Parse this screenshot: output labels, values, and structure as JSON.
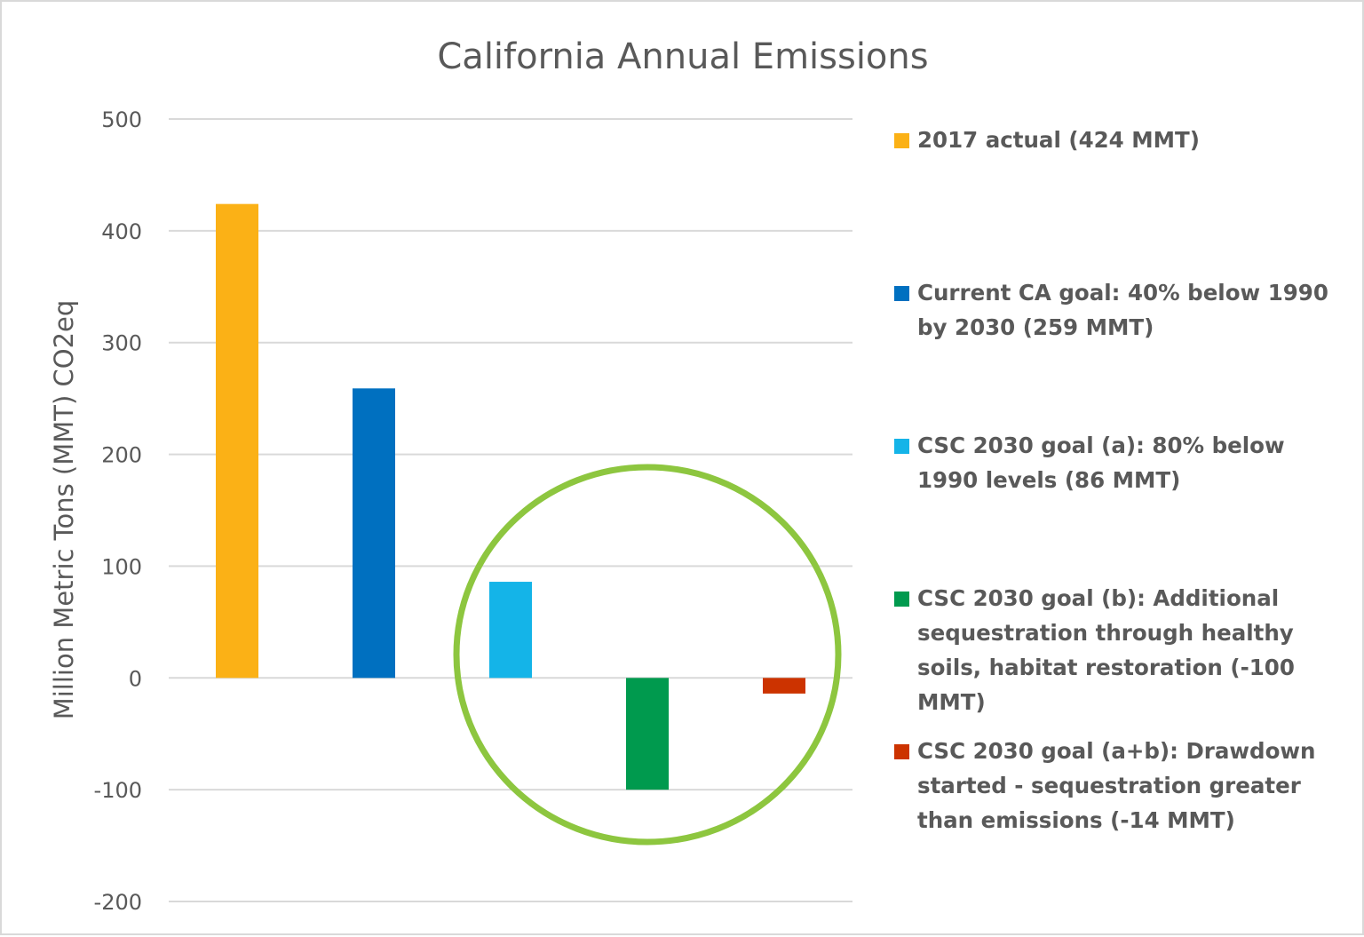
{
  "chart_data": {
    "type": "bar",
    "title": "California Annual Emissions",
    "ylabel": "Million Metric Tons (MMT) CO2eq",
    "xlabel": "",
    "ylim": [
      -200,
      500
    ],
    "yticks": [
      500,
      400,
      300,
      200,
      100,
      0,
      -100,
      -200
    ],
    "grid": true,
    "legend_position": "right",
    "series": [
      {
        "name": "2017 actual (424 MMT)",
        "value": 424,
        "color": "#FBB116"
      },
      {
        "name": "Current CA goal: 40% below 1990 by 2030 (259 MMT)",
        "value": 259,
        "color": "#0070C0"
      },
      {
        "name": "CSC 2030 goal (a): 80% below 1990 levels (86 MMT)",
        "value": 86,
        "color": "#14B4E8"
      },
      {
        "name": "CSC 2030 goal (b): Additional sequestration through healthy soils, habitat restoration (-100 MMT)",
        "value": -100,
        "color": "#009A4E"
      },
      {
        "name": "CSC 2030 goal (a+b): Drawdown started - sequestration greater than emissions (-14 MMT)",
        "value": -14,
        "color": "#CC3300"
      }
    ],
    "annotation": {
      "type": "circle",
      "color": "#8DC63F",
      "encloses_series": [
        2,
        3,
        4
      ]
    }
  }
}
